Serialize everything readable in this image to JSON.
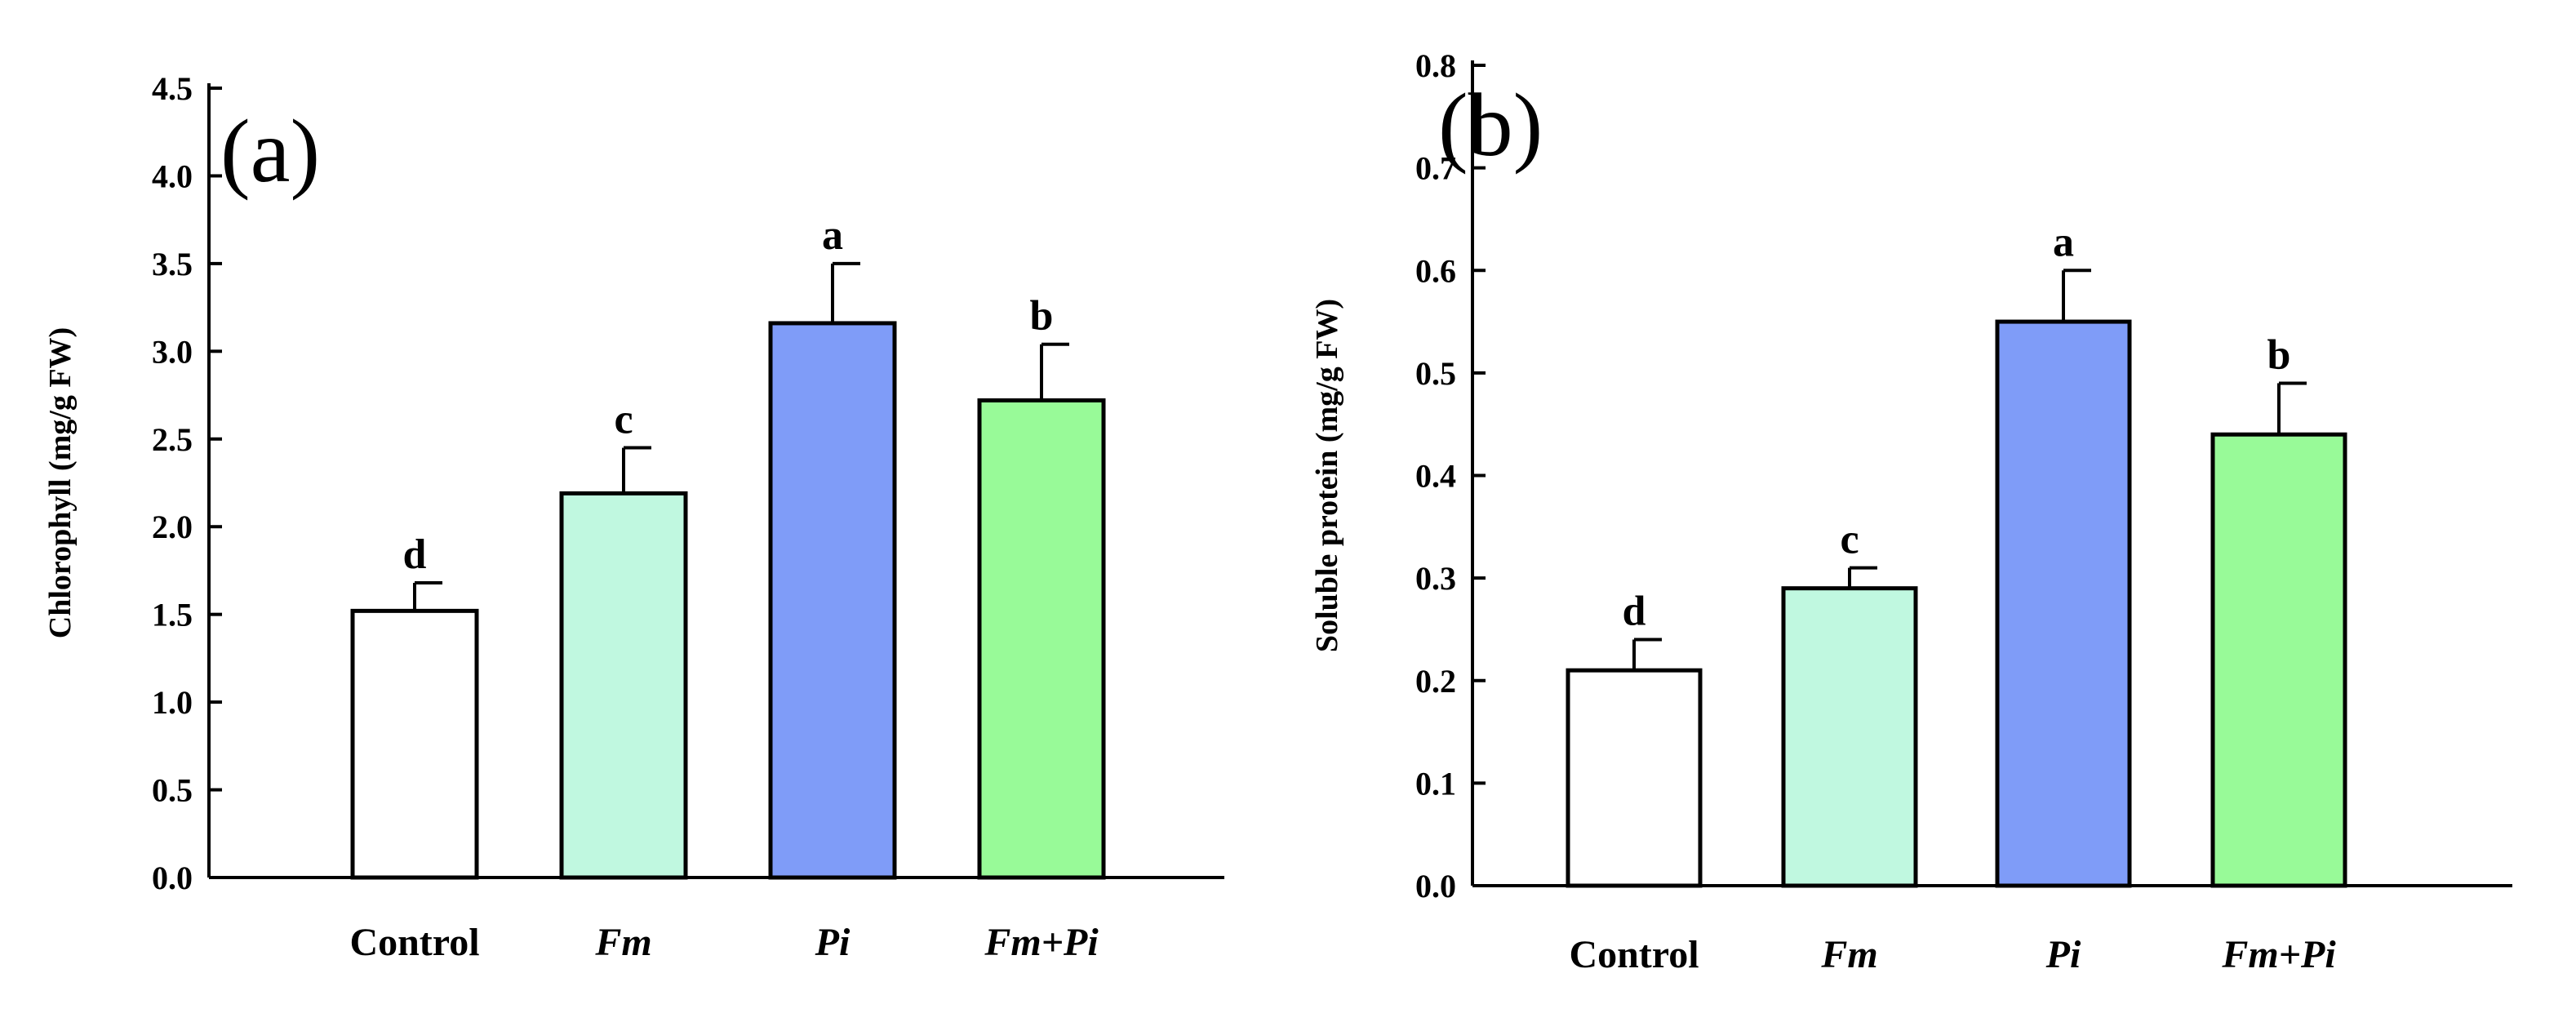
{
  "chart_data": [
    {
      "type": "bar",
      "panel_label": "(a)",
      "title": "",
      "xlabel": "",
      "ylabel": "Chlorophyll (mg/g FW)",
      "ylim": [
        0,
        4.5
      ],
      "yticks": [
        "0.0",
        "0.5",
        "1.0",
        "1.5",
        "2.0",
        "2.5",
        "3.0",
        "3.5",
        "4.0",
        "4.5"
      ],
      "categories": [
        "Control",
        "Fm",
        "Pi",
        "Fm+Pi"
      ],
      "italic_categories": [
        false,
        true,
        true,
        true
      ],
      "values": [
        1.52,
        2.19,
        3.16,
        2.72
      ],
      "errors": [
        0.16,
        0.26,
        0.34,
        0.32
      ],
      "significance": [
        "d",
        "c",
        "a",
        "b"
      ],
      "colors": [
        "#ffffff",
        "#c0f8e0",
        "#7f9cf8",
        "#98fa98"
      ]
    },
    {
      "type": "bar",
      "panel_label": "(b)",
      "title": "",
      "xlabel": "",
      "ylabel": "Soluble protein (mg/g FW)",
      "ylim": [
        0,
        0.8
      ],
      "yticks": [
        "0.0",
        "0.1",
        "0.2",
        "0.3",
        "0.4",
        "0.5",
        "0.6",
        "0.7",
        "0.8"
      ],
      "categories": [
        "Control",
        "Fm",
        "Pi",
        "Fm+Pi"
      ],
      "italic_categories": [
        false,
        true,
        true,
        true
      ],
      "values": [
        0.21,
        0.29,
        0.55,
        0.44
      ],
      "errors": [
        0.03,
        0.02,
        0.05,
        0.05
      ],
      "significance": [
        "d",
        "c",
        "a",
        "b"
      ],
      "colors": [
        "#ffffff",
        "#c0f8e0",
        "#7f9cf8",
        "#98fa98"
      ]
    }
  ]
}
